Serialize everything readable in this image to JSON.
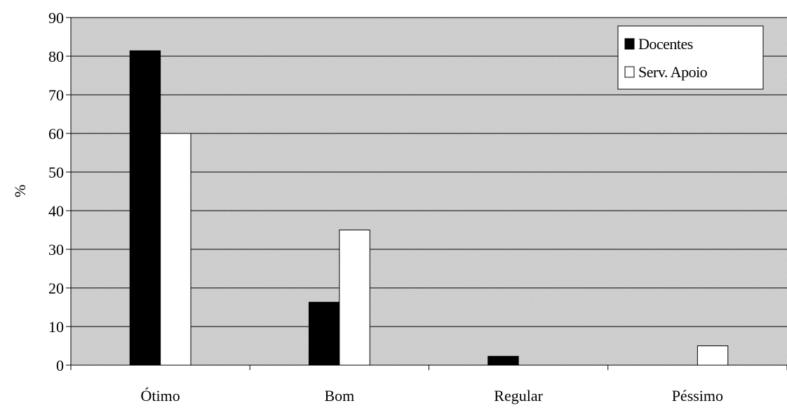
{
  "chart_data": {
    "type": "bar",
    "categories": [
      "Ótimo",
      "Bom",
      "Regular",
      "Péssimo"
    ],
    "series": [
      {
        "name": "Docentes",
        "values": [
          81.4,
          16.3,
          2.3,
          0
        ],
        "color": "#000000"
      },
      {
        "name": "Serv. Apoio",
        "values": [
          60,
          35,
          0,
          5
        ],
        "color": "#ffffff"
      }
    ],
    "title": "",
    "xlabel": "",
    "ylabel": "%",
    "ylim": [
      0,
      90
    ],
    "yticks": [
      "0",
      "10",
      "20",
      "30",
      "40",
      "50",
      "60",
      "70",
      "80",
      "90"
    ],
    "grid": true,
    "legend_position": "top-right",
    "plot_background": "#d9d9d9"
  }
}
